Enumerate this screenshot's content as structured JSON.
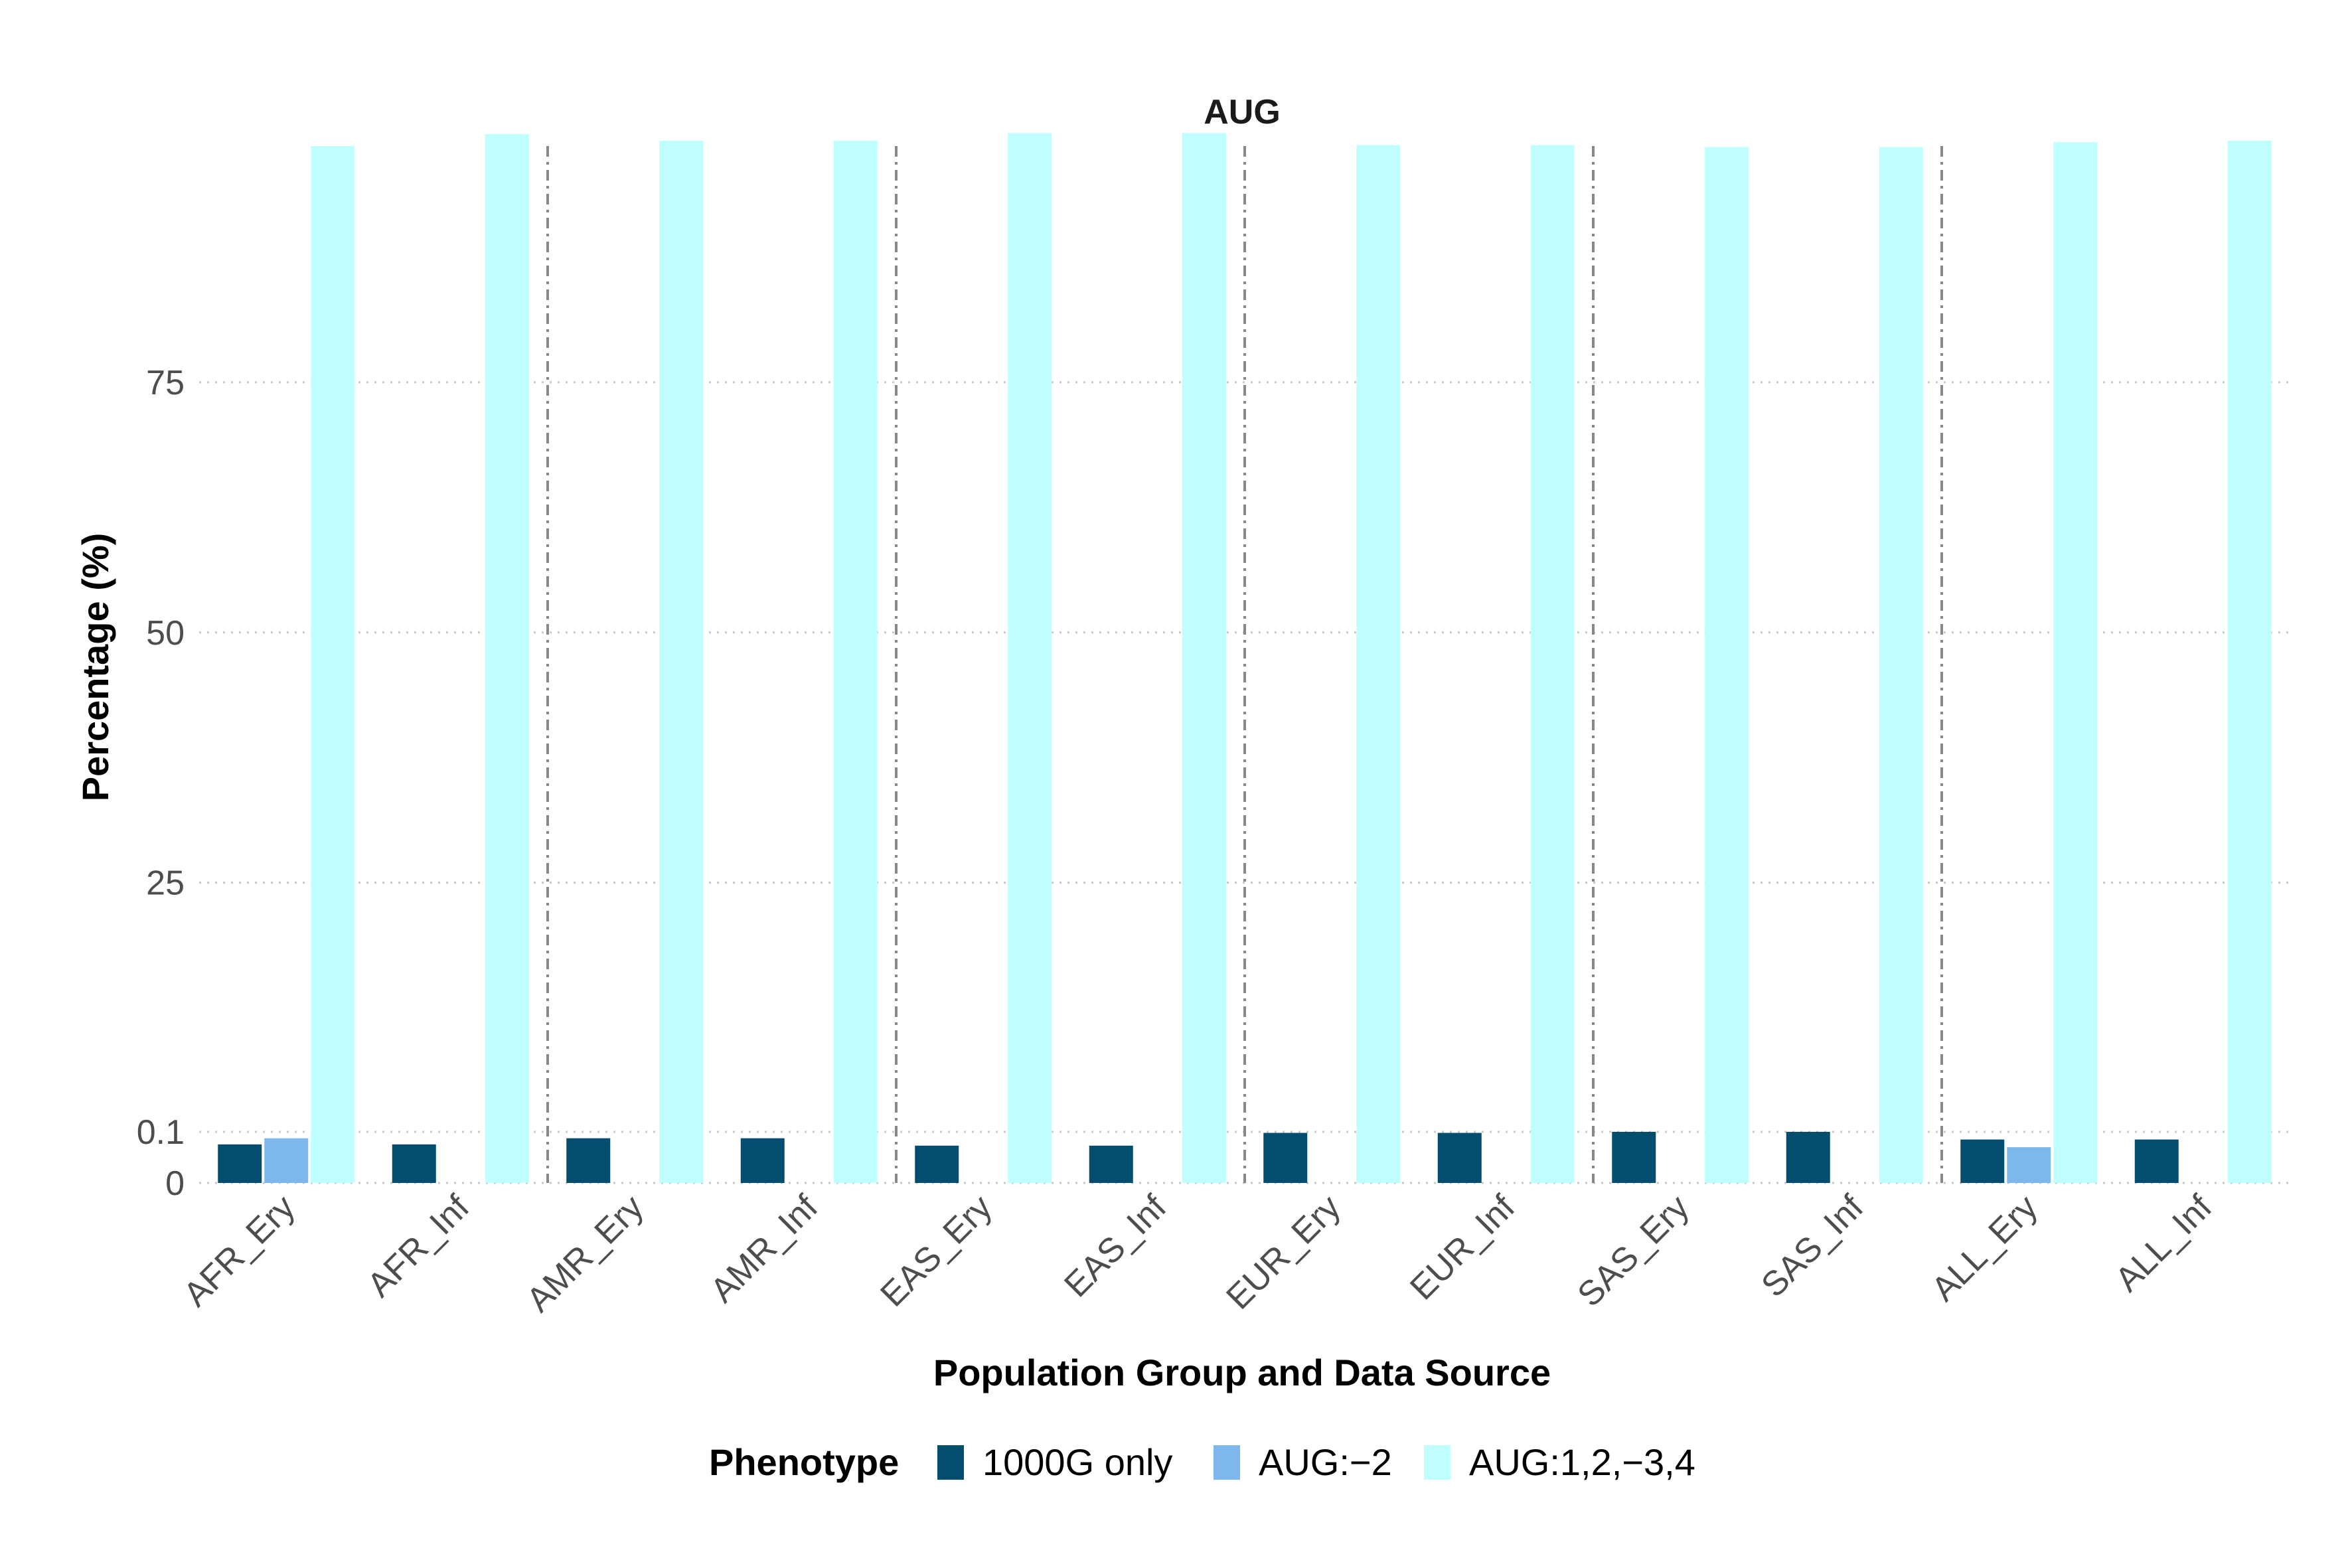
{
  "chart_data": {
    "type": "bar",
    "title": "AUG",
    "xlabel": "Population Group and Data Source",
    "ylabel": "Percentage (%)",
    "y_axis_scale": "broken near zero: 0 to 0.1 stretched, then linear 0.1 to 100",
    "yticks": [
      0,
      0.1,
      25,
      50,
      75
    ],
    "ytick_labels": [
      "0",
      "0.1",
      "25",
      "50",
      "75"
    ],
    "grid": "horizontal dotted at y ticks",
    "group_separators": "dash-dot vertical lines between population groups",
    "categories": [
      "AFR_Ery",
      "AFR_Inf",
      "AMR_Ery",
      "AMR_Inf",
      "EAS_Ery",
      "EAS_Inf",
      "EUR_Ery",
      "EUR_Inf",
      "SAS_Ery",
      "SAS_Inf",
      "ALL_Ery",
      "ALL_Inf"
    ],
    "series": [
      {
        "name": "1000G only",
        "color": "#034e6e",
        "values": [
          0.0755,
          0.0755,
          0.0875,
          0.0875,
          0.073,
          0.073,
          0.098,
          0.098,
          0.103,
          0.103,
          0.085,
          0.085
        ]
      },
      {
        "name": "AUG:−2",
        "color": "#7eb7ee",
        "values": [
          0.0875,
          null,
          null,
          null,
          null,
          null,
          null,
          null,
          null,
          null,
          0.07,
          null
        ]
      },
      {
        "name": "AUG:1,2,−3,4",
        "color": "#bfffff",
        "values": [
          98.6,
          99.8,
          99.15,
          99.15,
          99.9,
          99.9,
          98.7,
          98.7,
          98.5,
          98.5,
          99.0,
          99.15
        ]
      }
    ],
    "legend": {
      "title": "Phenotype",
      "placement": "bottom"
    }
  }
}
